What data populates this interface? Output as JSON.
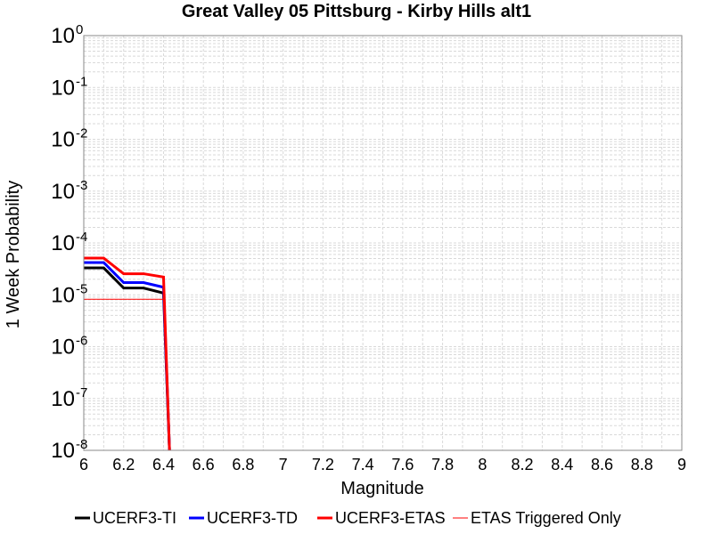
{
  "chart_data": {
    "type": "line",
    "title": "Great Valley 05 Pittsburg - Kirby Hills alt1",
    "xlabel": "Magnitude",
    "ylabel": "1 Week Probability",
    "xlim": [
      6,
      9
    ],
    "ylim": [
      1e-08,
      1
    ],
    "yscale": "log",
    "grid": true,
    "legend_position": "bottom",
    "x_ticks": [
      "6",
      "6.2",
      "6.4",
      "6.6",
      "6.8",
      "7",
      "7.2",
      "7.4",
      "7.6",
      "7.8",
      "8",
      "8.2",
      "8.4",
      "8.6",
      "8.8",
      "9"
    ],
    "y_ticks": [
      {
        "base": "10",
        "exp": "0"
      },
      {
        "base": "10",
        "exp": "-1"
      },
      {
        "base": "10",
        "exp": "-2"
      },
      {
        "base": "10",
        "exp": "-3"
      },
      {
        "base": "10",
        "exp": "-4"
      },
      {
        "base": "10",
        "exp": "-5"
      },
      {
        "base": "10",
        "exp": "-6"
      },
      {
        "base": "10",
        "exp": "-7"
      },
      {
        "base": "10",
        "exp": "-8"
      }
    ],
    "series": [
      {
        "name": "UCERF3-TI",
        "color": "#000000",
        "x": [
          6.0,
          6.1,
          6.2,
          6.3,
          6.4,
          6.43
        ],
        "y": [
          3.3e-05,
          3.3e-05,
          1.35e-05,
          1.35e-05,
          1.08e-05,
          1e-08
        ]
      },
      {
        "name": "UCERF3-TD",
        "color": "#0000ff",
        "x": [
          6.0,
          6.1,
          6.2,
          6.3,
          6.4,
          6.43
        ],
        "y": [
          4.2e-05,
          4.2e-05,
          1.72e-05,
          1.72e-05,
          1.4e-05,
          1e-08
        ]
      },
      {
        "name": "UCERF3-ETAS",
        "color": "#ff0000",
        "x": [
          6.0,
          6.1,
          6.2,
          6.3,
          6.4,
          6.43
        ],
        "y": [
          5.1e-05,
          5.1e-05,
          2.55e-05,
          2.55e-05,
          2.2e-05,
          1e-08
        ]
      },
      {
        "name": "ETAS Triggered Only",
        "color": "#ff0000",
        "x": [
          6.0,
          6.4
        ],
        "y": [
          8.2e-06,
          8.2e-06
        ]
      }
    ]
  }
}
